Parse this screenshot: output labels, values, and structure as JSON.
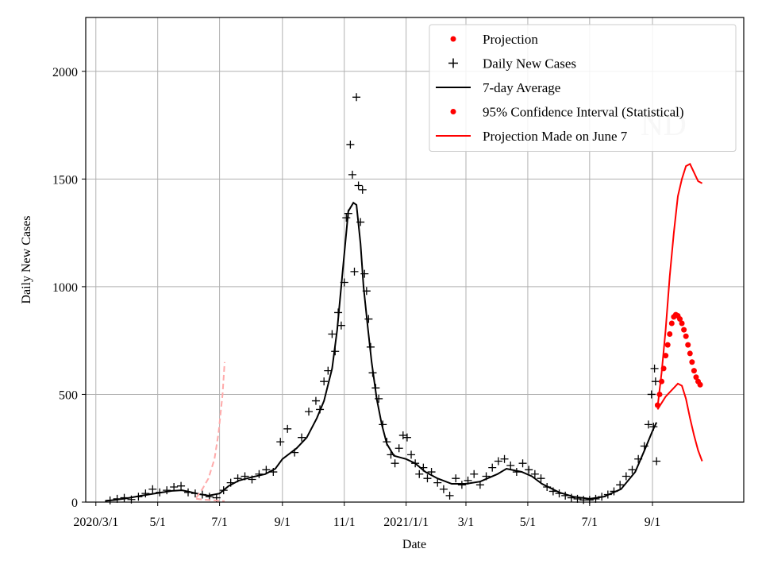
{
  "chart_data": {
    "type": "line",
    "xlabel": "Date",
    "ylabel": "Daily New Cases",
    "ylim": [
      0,
      2250
    ],
    "xlim": [
      "2020-02-20",
      "2021-11-30"
    ],
    "grid": true,
    "legend_position": "top-right",
    "watermark": "ND",
    "x_ticks": [
      {
        "date": "2020-03-01",
        "label": "2020/3/1"
      },
      {
        "date": "2020-05-01",
        "label": "5/1"
      },
      {
        "date": "2020-07-01",
        "label": "7/1"
      },
      {
        "date": "2020-09-01",
        "label": "9/1"
      },
      {
        "date": "2020-11-01",
        "label": "11/1"
      },
      {
        "date": "2021-01-01",
        "label": "2021/1/1"
      },
      {
        "date": "2021-03-01",
        "label": "3/1"
      },
      {
        "date": "2021-05-01",
        "label": "5/1"
      },
      {
        "date": "2021-07-01",
        "label": "7/1"
      },
      {
        "date": "2021-09-01",
        "label": "9/1"
      }
    ],
    "y_ticks": [
      0,
      500,
      1000,
      1500,
      2000
    ],
    "legend": [
      {
        "label": "Projection",
        "marker": "dot",
        "color": "#ff0000"
      },
      {
        "label": "Daily New Cases",
        "marker": "plus",
        "color": "#000000"
      },
      {
        "label": "7-day Average",
        "marker": "line",
        "color": "#000000"
      },
      {
        "label": "95% Confidence Interval (Statistical)",
        "marker": "dot",
        "color": "#ff0000"
      },
      {
        "label": "Projection Made on June 7",
        "marker": "line",
        "color": "#ff0000"
      }
    ],
    "series": [
      {
        "name": "7-day Average",
        "color": "#000000",
        "style": "line",
        "points": [
          [
            "2020-03-10",
            5
          ],
          [
            "2020-03-20",
            10
          ],
          [
            "2020-04-01",
            18
          ],
          [
            "2020-04-15",
            30
          ],
          [
            "2020-05-01",
            42
          ],
          [
            "2020-05-15",
            52
          ],
          [
            "2020-05-25",
            55
          ],
          [
            "2020-06-01",
            48
          ],
          [
            "2020-06-10",
            38
          ],
          [
            "2020-06-20",
            30
          ],
          [
            "2020-07-01",
            40
          ],
          [
            "2020-07-10",
            75
          ],
          [
            "2020-07-20",
            100
          ],
          [
            "2020-08-01",
            115
          ],
          [
            "2020-08-15",
            130
          ],
          [
            "2020-08-25",
            155
          ],
          [
            "2020-09-01",
            200
          ],
          [
            "2020-09-15",
            250
          ],
          [
            "2020-09-25",
            300
          ],
          [
            "2020-10-05",
            390
          ],
          [
            "2020-10-12",
            470
          ],
          [
            "2020-10-20",
            620
          ],
          [
            "2020-10-25",
            800
          ],
          [
            "2020-10-28",
            950
          ],
          [
            "2020-11-01",
            1150
          ],
          [
            "2020-11-05",
            1350
          ],
          [
            "2020-11-10",
            1390
          ],
          [
            "2020-11-13",
            1380
          ],
          [
            "2020-11-17",
            1200
          ],
          [
            "2020-11-20",
            1000
          ],
          [
            "2020-11-24",
            820
          ],
          [
            "2020-11-28",
            650
          ],
          [
            "2020-12-03",
            480
          ],
          [
            "2020-12-08",
            360
          ],
          [
            "2020-12-13",
            270
          ],
          [
            "2020-12-20",
            215
          ],
          [
            "2021-01-01",
            200
          ],
          [
            "2021-01-10",
            180
          ],
          [
            "2021-01-20",
            140
          ],
          [
            "2021-02-01",
            110
          ],
          [
            "2021-02-15",
            85
          ],
          [
            "2021-03-01",
            85
          ],
          [
            "2021-03-15",
            95
          ],
          [
            "2021-04-01",
            130
          ],
          [
            "2021-04-10",
            155
          ],
          [
            "2021-04-25",
            140
          ],
          [
            "2021-05-05",
            120
          ],
          [
            "2021-05-15",
            85
          ],
          [
            "2021-06-01",
            45
          ],
          [
            "2021-06-15",
            25
          ],
          [
            "2021-07-01",
            15
          ],
          [
            "2021-07-15",
            25
          ],
          [
            "2021-08-01",
            60
          ],
          [
            "2021-08-15",
            140
          ],
          [
            "2021-08-25",
            250
          ],
          [
            "2021-09-01",
            330
          ],
          [
            "2021-09-05",
            370
          ]
        ]
      },
      {
        "name": "Daily New Cases",
        "color": "#000000",
        "style": "plus",
        "points": [
          [
            "2020-03-15",
            8
          ],
          [
            "2020-03-22",
            15
          ],
          [
            "2020-03-29",
            20
          ],
          [
            "2020-04-05",
            12
          ],
          [
            "2020-04-12",
            25
          ],
          [
            "2020-04-19",
            40
          ],
          [
            "2020-04-26",
            60
          ],
          [
            "2020-05-03",
            45
          ],
          [
            "2020-05-10",
            55
          ],
          [
            "2020-05-17",
            70
          ],
          [
            "2020-05-24",
            75
          ],
          [
            "2020-05-31",
            45
          ],
          [
            "2020-06-07",
            40
          ],
          [
            "2020-06-14",
            35
          ],
          [
            "2020-06-21",
            25
          ],
          [
            "2020-06-28",
            20
          ],
          [
            "2020-07-05",
            55
          ],
          [
            "2020-07-12",
            90
          ],
          [
            "2020-07-19",
            110
          ],
          [
            "2020-07-26",
            120
          ],
          [
            "2020-08-02",
            105
          ],
          [
            "2020-08-09",
            130
          ],
          [
            "2020-08-16",
            150
          ],
          [
            "2020-08-23",
            140
          ],
          [
            "2020-08-30",
            280
          ],
          [
            "2020-09-06",
            340
          ],
          [
            "2020-09-13",
            230
          ],
          [
            "2020-09-20",
            300
          ],
          [
            "2020-09-27",
            420
          ],
          [
            "2020-10-04",
            470
          ],
          [
            "2020-10-08",
            430
          ],
          [
            "2020-10-12",
            560
          ],
          [
            "2020-10-16",
            610
          ],
          [
            "2020-10-20",
            780
          ],
          [
            "2020-10-23",
            700
          ],
          [
            "2020-10-26",
            880
          ],
          [
            "2020-10-29",
            820
          ],
          [
            "2020-11-01",
            1020
          ],
          [
            "2020-11-03",
            1320
          ],
          [
            "2020-11-05",
            1340
          ],
          [
            "2020-11-07",
            1660
          ],
          [
            "2020-11-09",
            1520
          ],
          [
            "2020-11-11",
            1070
          ],
          [
            "2020-11-13",
            1880
          ],
          [
            "2020-11-15",
            1470
          ],
          [
            "2020-11-17",
            1300
          ],
          [
            "2020-11-19",
            1450
          ],
          [
            "2020-11-21",
            1060
          ],
          [
            "2020-11-23",
            980
          ],
          [
            "2020-11-25",
            850
          ],
          [
            "2020-11-27",
            720
          ],
          [
            "2020-11-29",
            600
          ],
          [
            "2020-12-02",
            530
          ],
          [
            "2020-12-05",
            480
          ],
          [
            "2020-12-09",
            360
          ],
          [
            "2020-12-13",
            280
          ],
          [
            "2020-12-17",
            220
          ],
          [
            "2020-12-21",
            180
          ],
          [
            "2020-12-25",
            250
          ],
          [
            "2020-12-29",
            310
          ],
          [
            "2021-01-02",
            300
          ],
          [
            "2021-01-06",
            220
          ],
          [
            "2021-01-10",
            180
          ],
          [
            "2021-01-14",
            130
          ],
          [
            "2021-01-18",
            160
          ],
          [
            "2021-01-22",
            110
          ],
          [
            "2021-01-26",
            140
          ],
          [
            "2021-02-01",
            90
          ],
          [
            "2021-02-07",
            60
          ],
          [
            "2021-02-13",
            30
          ],
          [
            "2021-02-19",
            110
          ],
          [
            "2021-02-25",
            80
          ],
          [
            "2021-03-03",
            100
          ],
          [
            "2021-03-09",
            130
          ],
          [
            "2021-03-15",
            80
          ],
          [
            "2021-03-21",
            120
          ],
          [
            "2021-03-27",
            160
          ],
          [
            "2021-04-02",
            190
          ],
          [
            "2021-04-08",
            200
          ],
          [
            "2021-04-14",
            170
          ],
          [
            "2021-04-20",
            140
          ],
          [
            "2021-04-26",
            180
          ],
          [
            "2021-05-02",
            150
          ],
          [
            "2021-05-08",
            130
          ],
          [
            "2021-05-14",
            110
          ],
          [
            "2021-05-20",
            70
          ],
          [
            "2021-05-26",
            50
          ],
          [
            "2021-06-01",
            40
          ],
          [
            "2021-06-07",
            30
          ],
          [
            "2021-06-13",
            20
          ],
          [
            "2021-06-19",
            15
          ],
          [
            "2021-06-25",
            10
          ],
          [
            "2021-07-01",
            10
          ],
          [
            "2021-07-07",
            15
          ],
          [
            "2021-07-13",
            25
          ],
          [
            "2021-07-19",
            35
          ],
          [
            "2021-07-25",
            50
          ],
          [
            "2021-07-31",
            80
          ],
          [
            "2021-08-06",
            120
          ],
          [
            "2021-08-12",
            150
          ],
          [
            "2021-08-18",
            200
          ],
          [
            "2021-08-24",
            260
          ],
          [
            "2021-08-28",
            360
          ],
          [
            "2021-08-31",
            500
          ],
          [
            "2021-09-02",
            350
          ],
          [
            "2021-09-03",
            620
          ],
          [
            "2021-09-04",
            560
          ],
          [
            "2021-09-05",
            190
          ]
        ]
      },
      {
        "name": "Projection",
        "color": "#ff0000",
        "style": "dots",
        "points": [
          [
            "2021-09-06",
            450
          ],
          [
            "2021-09-08",
            500
          ],
          [
            "2021-09-10",
            560
          ],
          [
            "2021-09-12",
            620
          ],
          [
            "2021-09-14",
            680
          ],
          [
            "2021-09-16",
            730
          ],
          [
            "2021-09-18",
            780
          ],
          [
            "2021-09-20",
            830
          ],
          [
            "2021-09-22",
            860
          ],
          [
            "2021-09-24",
            870
          ],
          [
            "2021-09-26",
            865
          ],
          [
            "2021-09-28",
            850
          ],
          [
            "2021-09-30",
            830
          ],
          [
            "2021-10-02",
            800
          ],
          [
            "2021-10-04",
            770
          ],
          [
            "2021-10-06",
            730
          ],
          [
            "2021-10-08",
            690
          ],
          [
            "2021-10-10",
            650
          ],
          [
            "2021-10-12",
            610
          ],
          [
            "2021-10-14",
            580
          ],
          [
            "2021-10-16",
            560
          ],
          [
            "2021-10-18",
            545
          ]
        ]
      },
      {
        "name": "95% Confidence Interval (Statistical)",
        "color": "#ff0000",
        "style": "line",
        "points": [
          [
            "2021-09-06",
            440
          ],
          [
            "2021-09-10",
            600
          ],
          [
            "2021-09-14",
            800
          ],
          [
            "2021-09-18",
            1050
          ],
          [
            "2021-09-22",
            1250
          ],
          [
            "2021-09-26",
            1420
          ],
          [
            "2021-09-30",
            1500
          ],
          [
            "2021-10-04",
            1560
          ],
          [
            "2021-10-08",
            1570
          ],
          [
            "2021-10-12",
            1530
          ],
          [
            "2021-10-16",
            1490
          ],
          [
            "2021-10-20",
            1480
          ]
        ]
      },
      {
        "name": "95% Confidence Interval (Statistical)",
        "color": "#ff0000",
        "style": "line",
        "points": [
          [
            "2021-09-06",
            430
          ],
          [
            "2021-09-10",
            460
          ],
          [
            "2021-09-14",
            490
          ],
          [
            "2021-09-18",
            510
          ],
          [
            "2021-09-22",
            530
          ],
          [
            "2021-09-26",
            550
          ],
          [
            "2021-09-30",
            540
          ],
          [
            "2021-10-04",
            480
          ],
          [
            "2021-10-08",
            390
          ],
          [
            "2021-10-12",
            310
          ],
          [
            "2021-10-16",
            240
          ],
          [
            "2021-10-20",
            190
          ]
        ]
      },
      {
        "name": "Projection Made on June 7",
        "color": "#ffaaaa",
        "style": "dashed",
        "points": [
          [
            "2020-06-08",
            20
          ],
          [
            "2020-06-14",
            60
          ],
          [
            "2020-06-20",
            110
          ],
          [
            "2020-06-26",
            200
          ],
          [
            "2020-06-30",
            320
          ],
          [
            "2020-07-04",
            500
          ],
          [
            "2020-07-06",
            650
          ]
        ]
      },
      {
        "name": "Projection Made on June 7",
        "color": "#ffaaaa",
        "style": "dashed",
        "points": [
          [
            "2020-06-08",
            15
          ],
          [
            "2020-06-14",
            12
          ],
          [
            "2020-06-20",
            10
          ],
          [
            "2020-06-26",
            8
          ],
          [
            "2020-07-01",
            6
          ],
          [
            "2020-07-06",
            4
          ]
        ]
      }
    ]
  }
}
